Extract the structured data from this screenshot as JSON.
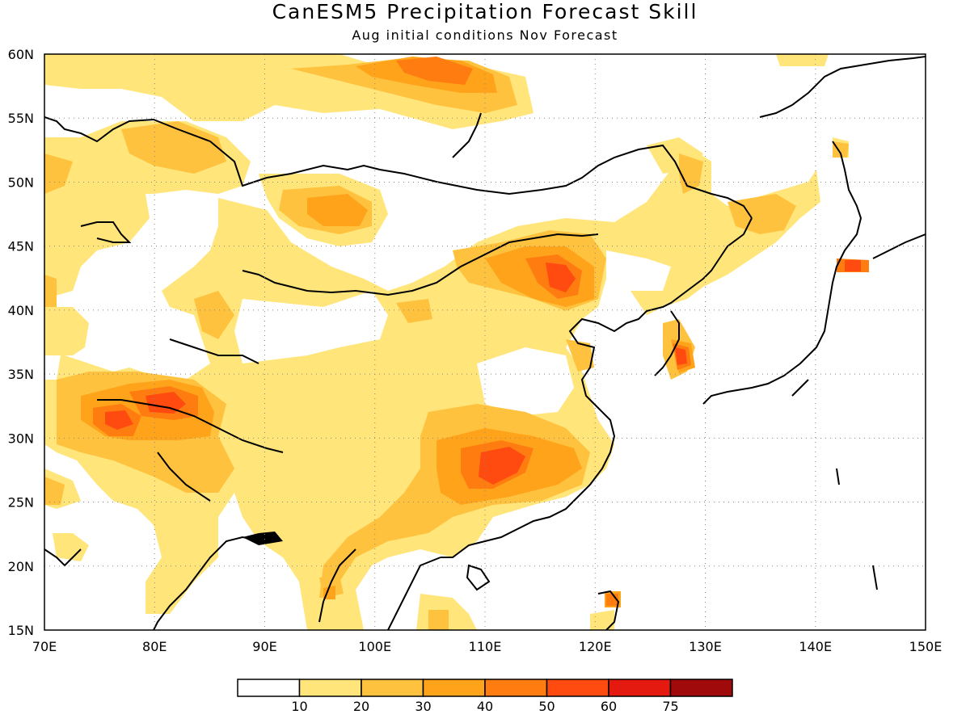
{
  "title": "CanESM5 Precipitation Forecast Skill",
  "subtitle": "Aug initial conditions  Nov Forecast",
  "axes": {
    "lon_ticks": [
      "70E",
      "80E",
      "90E",
      "100E",
      "110E",
      "120E",
      "130E",
      "140E",
      "150E"
    ],
    "lat_ticks": [
      "60N",
      "55N",
      "50N",
      "45N",
      "40N",
      "35N",
      "30N",
      "25N",
      "20N",
      "15N"
    ],
    "lon_range": [
      70,
      150
    ],
    "lat_range": [
      15,
      60
    ],
    "grid": "dotted"
  },
  "colorbar": {
    "labels": [
      "10",
      "20",
      "30",
      "40",
      "50",
      "60",
      "75"
    ],
    "colors": [
      "#ffffff",
      "#ffe57a",
      "#ffc23e",
      "#ffa31a",
      "#ff7c10",
      "#ff4a10",
      "#e41a10",
      "#a00a0a"
    ]
  },
  "map_regions": [
    {
      "name": "central-china-max",
      "lon": 111,
      "lat": 28,
      "level": 5
    },
    {
      "name": "inner-mongolia-max",
      "lon": 117,
      "lat": 42.5,
      "level": 5
    },
    {
      "name": "north-india-max",
      "lon": 81,
      "lat": 32.5,
      "level": 5
    },
    {
      "name": "pakistan-max",
      "lon": 77,
      "lat": 31,
      "level": 5
    },
    {
      "name": "korea-max",
      "lon": 127.5,
      "lat": 36,
      "level": 6
    },
    {
      "name": "hokkaido-max",
      "lon": 143,
      "lat": 43.5,
      "level": 6
    },
    {
      "name": "siberia-max",
      "lon": 106,
      "lat": 58.5,
      "level": 4
    },
    {
      "name": "taiwan-max",
      "lon": 121.5,
      "lat": 17.5,
      "level": 5
    }
  ]
}
